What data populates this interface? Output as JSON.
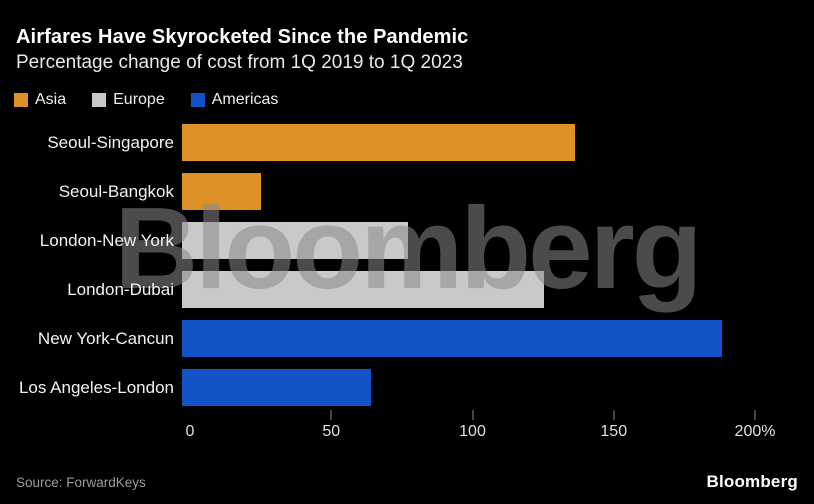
{
  "header": {
    "title": "Airfares Have Skyrocketed Since the Pandemic",
    "subtitle": "Percentage change of cost from 1Q 2019 to 1Q 2023"
  },
  "legend": [
    {
      "label": "Asia",
      "region": "Asia"
    },
    {
      "label": "Europe",
      "region": "Europe"
    },
    {
      "label": "Americas",
      "region": "Americas"
    }
  ],
  "chart_data": {
    "type": "bar",
    "orientation": "horizontal",
    "title": "Airfares Have Skyrocketed Since the Pandemic",
    "subtitle": "Percentage change of cost from 1Q 2019 to 1Q 2023",
    "unit": "%",
    "xlim": [
      0,
      200
    ],
    "grid": false,
    "legend_position": "top",
    "categories": [
      "Seoul-Singapore",
      "Seoul-Bangkok",
      "London-New York",
      "London-Dubai",
      "New York-Cancun",
      "Los Angeles-London"
    ],
    "rows": [
      {
        "label": "Seoul-Singapore",
        "region": "Asia",
        "value": 139
      },
      {
        "label": "Seoul-Bangkok",
        "region": "Asia",
        "value": 28
      },
      {
        "label": "London-New York",
        "region": "Europe",
        "value": 80
      },
      {
        "label": "London-Dubai",
        "region": "Europe",
        "value": 128
      },
      {
        "label": "New York-Cancun",
        "region": "Americas",
        "value": 191
      },
      {
        "label": "Los Angeles-London",
        "region": "Americas",
        "value": 67
      }
    ],
    "x_ticks": [
      {
        "value": 0,
        "label": "0",
        "mark": false
      },
      {
        "value": 50,
        "label": "50",
        "mark": true
      },
      {
        "value": 100,
        "label": "100",
        "mark": true
      },
      {
        "value": 150,
        "label": "150",
        "mark": true
      },
      {
        "value": 200,
        "label": "200%",
        "mark": true
      }
    ]
  },
  "watermark": "Bloomberg",
  "footer": {
    "source": "Source: ForwardKeys",
    "logo": "Bloomberg"
  },
  "colors": {
    "background": "#000000",
    "Asia": "#DE9126",
    "Europe": "#C9C9C9",
    "Americas": "#1254C8",
    "title_text": "#FFFFFF",
    "subtitle_text": "#E9E9E9",
    "label_text": "#F2F2F2",
    "axis_text": "#E0E0E0",
    "tick_mark": "#8A8A8A",
    "source_text": "#9C9C9C",
    "watermark": "rgba(136,136,136,0.55)"
  }
}
